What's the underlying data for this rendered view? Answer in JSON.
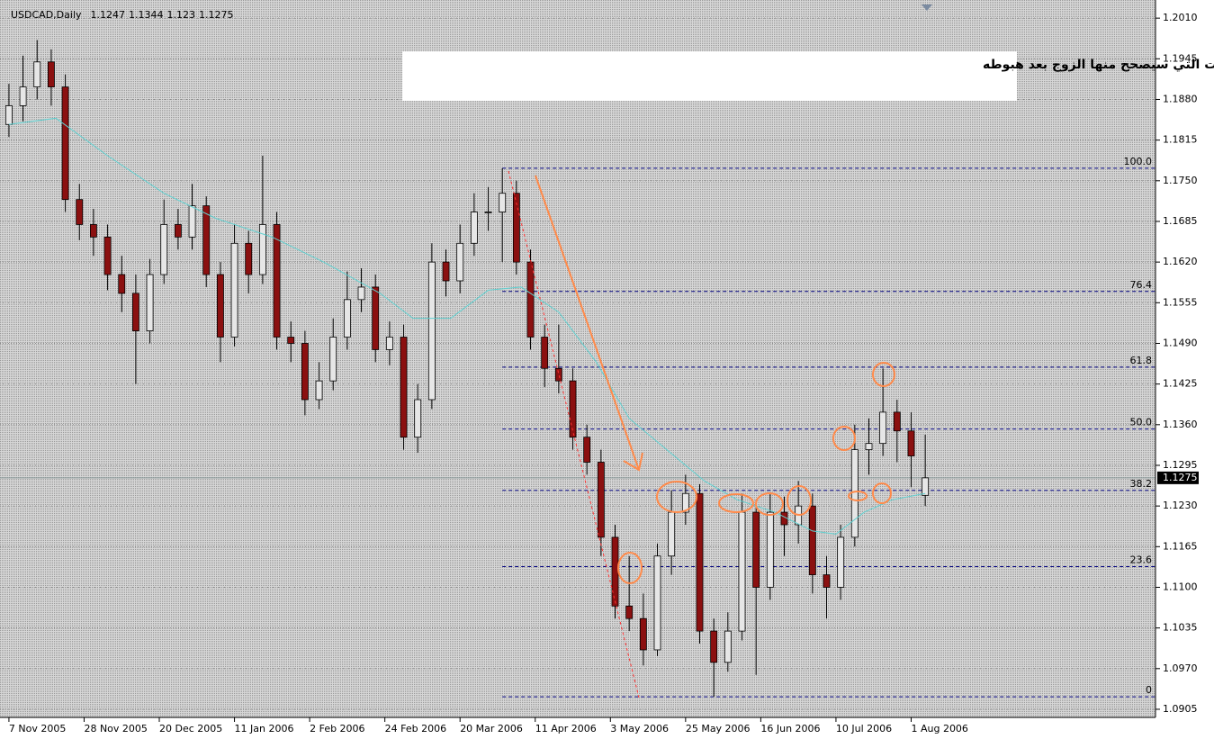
{
  "chart_data": {
    "type": "candlestick",
    "title": "USDCAD,Daily",
    "annotation": "الاتجاه هابط للكندي /دولار ونحن نود ان نعرف المستويات التي سيصحح منها الزوج بعد هبوطه",
    "bull_color": "#e6e6e6",
    "bear_color": "#8b1010",
    "grid": true,
    "xlim": [
      -1.9,
      244
    ],
    "ylim": [
      1.0892,
      1.2039
    ],
    "xticks": [
      {
        "value": 0,
        "label": "7 Nov 2005"
      },
      {
        "value": 16,
        "label": "28 Nov 2005"
      },
      {
        "value": 32,
        "label": "20 Dec 2005"
      },
      {
        "value": 48,
        "label": "11 Jan 2006"
      },
      {
        "value": 64,
        "label": "2 Feb 2006"
      },
      {
        "value": 80,
        "label": "24 Feb 2006"
      },
      {
        "value": 96,
        "label": "20 Mar 2006"
      },
      {
        "value": 112,
        "label": "11 Apr 2006"
      },
      {
        "value": 128,
        "label": "3 May 2006"
      },
      {
        "value": 144,
        "label": "25 May 2006"
      },
      {
        "value": 160,
        "label": "16 Jun 2006"
      },
      {
        "value": 176,
        "label": "10 Jul 2006"
      },
      {
        "value": 192,
        "label": "1 Aug 2006"
      }
    ],
    "yticks": [
      {
        "value": 1.201,
        "label": "1.2010"
      },
      1.1945,
      {
        "value": 1.188,
        "label": "1.1880"
      },
      1.1815,
      {
        "value": 1.175,
        "label": "1.1750"
      },
      1.1685,
      {
        "value": 1.162,
        "label": "1.1620"
      },
      1.1555,
      {
        "value": 1.149,
        "label": "1.1490"
      },
      1.1425,
      {
        "value": 1.136,
        "label": "1.1360"
      },
      1.1295,
      {
        "value": 1.123,
        "label": "1.1230"
      },
      1.1165,
      {
        "value": 1.11,
        "label": "1.1100"
      },
      1.1035,
      {
        "value": 1.097,
        "label": "1.0970"
      },
      1.0905
    ],
    "x": [
      0,
      3,
      6,
      9,
      12,
      15,
      18,
      21,
      24,
      27,
      30,
      33,
      36,
      39,
      42,
      45,
      48,
      51,
      54,
      57,
      60,
      63,
      66,
      69,
      72,
      75,
      78,
      81,
      84,
      87,
      90,
      93,
      96,
      99,
      102,
      105,
      108,
      111,
      114,
      117,
      120,
      123,
      126,
      129,
      132,
      135,
      138,
      141,
      144,
      147,
      150,
      153,
      156,
      159,
      162,
      165,
      168,
      171,
      174,
      177,
      180,
      183,
      186,
      189,
      192,
      195
    ],
    "open": [
      1.184,
      1.187,
      1.19,
      1.194,
      1.19,
      1.172,
      1.168,
      1.166,
      1.16,
      1.157,
      1.151,
      1.16,
      1.168,
      1.166,
      1.171,
      1.16,
      1.15,
      1.165,
      1.16,
      1.168,
      1.15,
      1.149,
      1.14,
      1.143,
      1.15,
      1.156,
      1.158,
      1.148,
      1.15,
      1.134,
      1.14,
      1.162,
      1.159,
      1.165,
      1.17,
      1.17,
      1.173,
      1.162,
      1.15,
      1.145,
      1.143,
      1.134,
      1.13,
      1.118,
      1.107,
      1.105,
      1.1,
      1.115,
      1.122,
      1.125,
      1.103,
      1.098,
      1.103,
      1.122,
      1.11,
      1.122,
      1.12,
      1.123,
      1.112,
      1.11,
      1.118,
      1.132,
      1.133,
      1.138,
      1.135,
      1.1247
    ],
    "high": [
      1.1905,
      1.195,
      1.1975,
      1.196,
      1.192,
      1.1745,
      1.1705,
      1.168,
      1.163,
      1.16,
      1.1625,
      1.172,
      1.1705,
      1.1745,
      1.1725,
      1.162,
      1.168,
      1.167,
      1.179,
      1.17,
      1.1525,
      1.151,
      1.146,
      1.153,
      1.1605,
      1.161,
      1.16,
      1.1525,
      1.152,
      1.1425,
      1.165,
      1.164,
      1.168,
      1.173,
      1.174,
      1.177,
      1.175,
      1.164,
      1.152,
      1.152,
      1.145,
      1.136,
      1.132,
      1.12,
      1.115,
      1.109,
      1.117,
      1.1255,
      1.128,
      1.1265,
      1.105,
      1.106,
      1.125,
      1.124,
      1.125,
      1.1245,
      1.127,
      1.125,
      1.115,
      1.12,
      1.136,
      1.137,
      1.145,
      1.14,
      1.138,
      1.1344
    ],
    "low": [
      1.182,
      1.1845,
      1.188,
      1.187,
      1.17,
      1.1655,
      1.163,
      1.1575,
      1.154,
      1.1425,
      1.149,
      1.1585,
      1.164,
      1.164,
      1.158,
      1.146,
      1.1485,
      1.157,
      1.1585,
      1.148,
      1.146,
      1.1375,
      1.1385,
      1.1415,
      1.148,
      1.154,
      1.146,
      1.1455,
      1.132,
      1.1315,
      1.1385,
      1.1565,
      1.157,
      1.163,
      1.167,
      1.162,
      1.16,
      1.148,
      1.142,
      1.141,
      1.132,
      1.128,
      1.115,
      1.105,
      1.103,
      1.0975,
      1.099,
      1.112,
      1.12,
      1.101,
      1.0925,
      1.0965,
      1.1015,
      1.096,
      1.108,
      1.115,
      1.117,
      1.109,
      1.105,
      1.108,
      1.1165,
      1.128,
      1.131,
      1.13,
      1.126,
      1.123
    ],
    "close": [
      1.187,
      1.19,
      1.194,
      1.19,
      1.172,
      1.168,
      1.166,
      1.16,
      1.157,
      1.151,
      1.16,
      1.168,
      1.166,
      1.171,
      1.16,
      1.15,
      1.165,
      1.16,
      1.168,
      1.15,
      1.149,
      1.14,
      1.143,
      1.15,
      1.156,
      1.158,
      1.148,
      1.15,
      1.134,
      1.14,
      1.162,
      1.159,
      1.165,
      1.17,
      1.17,
      1.173,
      1.162,
      1.15,
      1.145,
      1.143,
      1.134,
      1.13,
      1.118,
      1.107,
      1.105,
      1.1,
      1.115,
      1.122,
      1.125,
      1.103,
      1.098,
      1.103,
      1.122,
      1.11,
      1.122,
      1.12,
      1.123,
      1.112,
      1.11,
      1.118,
      1.132,
      1.133,
      1.138,
      1.135,
      1.131,
      1.1275
    ],
    "moving_average": {
      "color": "#5fd0d0",
      "x": [
        0,
        10,
        21,
        33,
        44,
        56,
        67,
        79,
        86,
        94,
        102,
        109,
        117,
        125,
        132,
        140,
        148,
        155,
        163,
        171,
        176,
        182,
        188,
        195
      ],
      "values": [
        1.184,
        1.185,
        1.179,
        1.173,
        1.169,
        1.166,
        1.162,
        1.157,
        1.153,
        1.153,
        1.1575,
        1.158,
        1.154,
        1.146,
        1.137,
        1.132,
        1.127,
        1.124,
        1.122,
        1.119,
        1.1185,
        1.122,
        1.124,
        1.125
      ]
    },
    "fibonacci": {
      "color": "#000080",
      "start_x": 105,
      "levels": [
        {
          "label": "100.0",
          "price": 1.177
        },
        {
          "label": "76.4",
          "price": 1.1573
        },
        {
          "label": "61.8",
          "price": 1.1452
        },
        {
          "label": "50.0",
          "price": 1.1353
        },
        {
          "label": "38.2",
          "price": 1.1255
        },
        {
          "label": "23.6",
          "price": 1.1133
        },
        {
          "label": "0",
          "price": 1.0925
        }
      ]
    }
  }
}
